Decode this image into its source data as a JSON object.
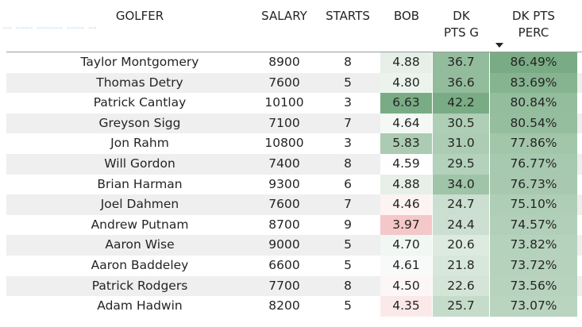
{
  "colors": {
    "accent_green": "#6aa377",
    "low_red": "#f4c7c9",
    "alt_row": "#efefef",
    "header_line": "#9b9b9b"
  },
  "header": {
    "golfer": "GOLFER",
    "salary": "SALARY",
    "starts": "STARTS",
    "bob": "BOB",
    "dk_pts_g": [
      "DK",
      "PTS G"
    ],
    "dk_pts_perc": [
      "DK PTS",
      "PERC"
    ],
    "sort_icon": "sort-descending-icon"
  },
  "rows": [
    {
      "golfer": "Taylor Montgomery",
      "salary": "8900",
      "starts": "8",
      "bob": "4.88",
      "dk_pts_g": "36.7",
      "dk_pts_perc": "86.49%"
    },
    {
      "golfer": "Thomas Detry",
      "salary": "7600",
      "starts": "5",
      "bob": "4.80",
      "dk_pts_g": "36.6",
      "dk_pts_perc": "83.69%"
    },
    {
      "golfer": "Patrick Cantlay",
      "salary": "10100",
      "starts": "3",
      "bob": "6.63",
      "dk_pts_g": "42.2",
      "dk_pts_perc": "80.84%"
    },
    {
      "golfer": "Greyson Sigg",
      "salary": "7100",
      "starts": "7",
      "bob": "4.64",
      "dk_pts_g": "30.5",
      "dk_pts_perc": "80.54%"
    },
    {
      "golfer": "Jon Rahm",
      "salary": "10800",
      "starts": "3",
      "bob": "5.83",
      "dk_pts_g": "31.0",
      "dk_pts_perc": "77.86%"
    },
    {
      "golfer": "Will Gordon",
      "salary": "7400",
      "starts": "8",
      "bob": "4.59",
      "dk_pts_g": "29.5",
      "dk_pts_perc": "76.77%"
    },
    {
      "golfer": "Brian Harman",
      "salary": "9300",
      "starts": "6",
      "bob": "4.88",
      "dk_pts_g": "34.0",
      "dk_pts_perc": "76.73%"
    },
    {
      "golfer": "Joel Dahmen",
      "salary": "7600",
      "starts": "7",
      "bob": "4.46",
      "dk_pts_g": "24.7",
      "dk_pts_perc": "75.10%"
    },
    {
      "golfer": "Andrew Putnam",
      "salary": "8700",
      "starts": "9",
      "bob": "3.97",
      "dk_pts_g": "24.4",
      "dk_pts_perc": "74.57%"
    },
    {
      "golfer": "Aaron Wise",
      "salary": "9000",
      "starts": "5",
      "bob": "4.70",
      "dk_pts_g": "20.6",
      "dk_pts_perc": "73.82%"
    },
    {
      "golfer": "Aaron Baddeley",
      "salary": "6600",
      "starts": "5",
      "bob": "4.61",
      "dk_pts_g": "21.8",
      "dk_pts_perc": "73.72%"
    },
    {
      "golfer": "Patrick Rodgers",
      "salary": "7700",
      "starts": "8",
      "bob": "4.50",
      "dk_pts_g": "22.6",
      "dk_pts_perc": "73.56%"
    },
    {
      "golfer": "Adam Hadwin",
      "salary": "8200",
      "starts": "5",
      "bob": "4.35",
      "dk_pts_g": "25.7",
      "dk_pts_perc": "73.07%"
    }
  ]
}
